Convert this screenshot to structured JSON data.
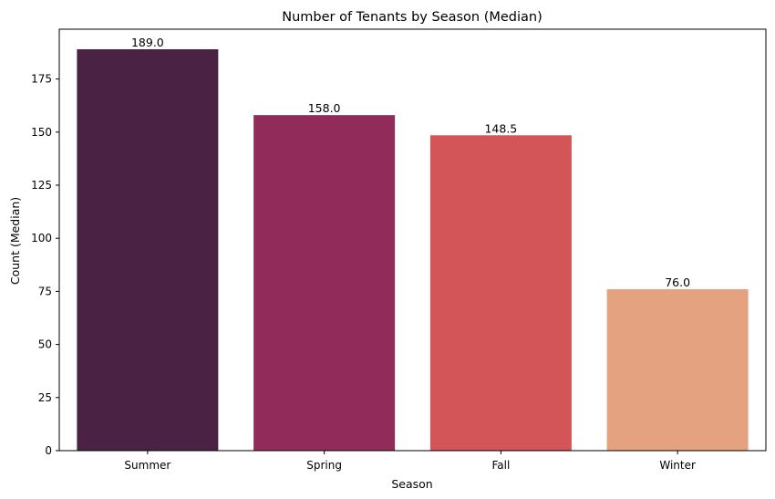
{
  "chart_data": {
    "type": "bar",
    "title": "Number of Tenants by Season (Median)",
    "xlabel": "Season",
    "ylabel": "Count (Median)",
    "categories": [
      "Summer",
      "Spring",
      "Fall",
      "Winter"
    ],
    "values": [
      189.0,
      158.0,
      148.5,
      76.0
    ],
    "data_labels": [
      "189.0",
      "158.0",
      "148.5",
      "76.0"
    ],
    "colors": [
      "#4a2244",
      "#902b5a",
      "#d45557",
      "#e4a280"
    ],
    "yticks": [
      0,
      25,
      50,
      75,
      100,
      125,
      150,
      175
    ],
    "ylim": [
      0,
      198.45
    ],
    "grid": false,
    "legend": "none"
  }
}
